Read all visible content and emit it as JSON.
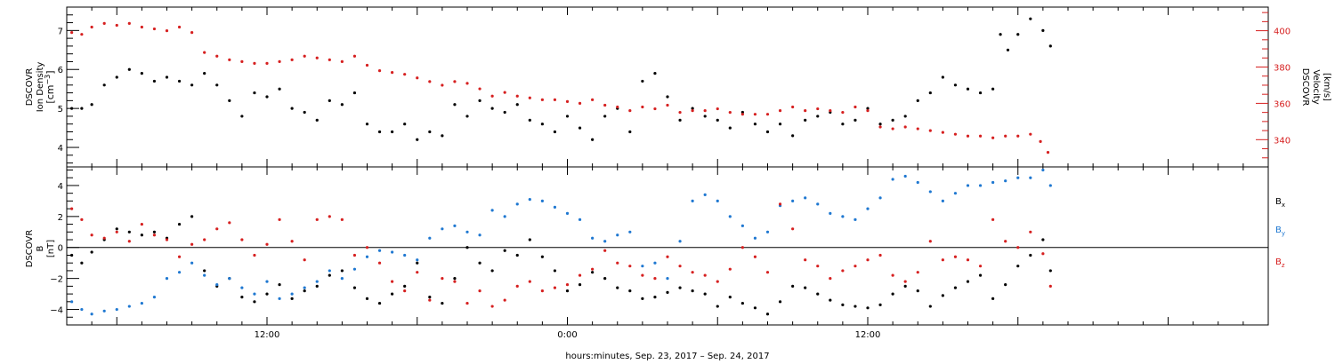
{
  "figure": {
    "xlabel": "hours:minutes, Sep. 23, 2017 – Sep. 24, 2017",
    "time_ticks": [
      "12:00",
      "0:00",
      "12:00"
    ]
  },
  "chart_data": [
    {
      "type": "scatter",
      "name": "density_velocity",
      "x_unit": "hours since Sep. 23, 2017 00:00",
      "xlim": [
        4,
        52
      ],
      "left_axis": {
        "label_lines": [
          "DSCOVR",
          "Ion Density"
        ],
        "unit_base": "[cm",
        "unit_sup": "−3",
        "unit_end": "]",
        "ylim": [
          3.5,
          7.6
        ],
        "ticks": [
          "4",
          "5",
          "6",
          "7"
        ],
        "tick_values": [
          4,
          5,
          6,
          7
        ]
      },
      "right_axis": {
        "label_lines": [
          "DSCOVR",
          "Velocity",
          "[km/s]"
        ],
        "ylim": [
          325,
          413
        ],
        "ticks": [
          "340",
          "360",
          "380",
          "400"
        ],
        "tick_values": [
          340,
          360,
          380,
          400
        ],
        "color": "#d62020"
      },
      "series": [
        {
          "name": "Ion Density",
          "color": "#000000",
          "x": [
            4.2,
            4.6,
            5.0,
            5.5,
            6.0,
            6.5,
            7.0,
            7.5,
            8.0,
            8.5,
            9.0,
            9.5,
            10.0,
            10.5,
            11.0,
            11.5,
            12.0,
            12.5,
            13.0,
            13.5,
            14.0,
            14.5,
            15.0,
            15.5,
            16.0,
            16.5,
            17.0,
            17.5,
            18.0,
            18.5,
            19.0,
            19.5,
            20.0,
            20.5,
            21.0,
            21.5,
            22.0,
            22.5,
            23.0,
            23.5,
            24.0,
            24.5,
            25.0,
            25.5,
            26.0,
            26.5,
            27.0,
            27.5,
            28.0,
            28.5,
            29.0,
            29.5,
            30.0,
            30.5,
            31.0,
            31.5,
            32.0,
            32.5,
            33.0,
            33.5,
            34.0,
            34.5,
            35.0,
            35.5,
            36.0,
            36.5,
            37.0,
            37.5,
            38.0,
            38.5,
            39.0,
            39.5,
            40.0,
            40.5,
            41.0,
            41.3,
            41.6,
            42.0,
            42.5,
            43.0,
            43.3
          ],
          "y": [
            5.0,
            5.0,
            5.1,
            5.6,
            5.8,
            6.0,
            5.9,
            5.7,
            5.8,
            5.7,
            5.6,
            5.9,
            5.6,
            5.2,
            4.8,
            5.4,
            5.3,
            5.5,
            5.0,
            4.9,
            4.7,
            5.2,
            5.1,
            5.4,
            4.6,
            4.4,
            4.4,
            4.6,
            4.2,
            4.4,
            4.3,
            5.1,
            4.8,
            5.2,
            5.0,
            4.9,
            5.1,
            4.7,
            4.6,
            4.4,
            4.8,
            4.5,
            4.2,
            4.8,
            5.0,
            4.4,
            5.7,
            5.9,
            5.3,
            4.7,
            5.0,
            4.8,
            4.7,
            4.5,
            4.9,
            4.6,
            4.4,
            4.6,
            4.3,
            4.7,
            4.8,
            4.9,
            4.6,
            4.7,
            5.0,
            4.6,
            4.7,
            4.8,
            5.2,
            5.4,
            5.8,
            5.6,
            5.5,
            5.4,
            5.5,
            6.9,
            6.5,
            6.9,
            7.3,
            7.0,
            6.6
          ]
        },
        {
          "name": "Velocity",
          "color": "#d62020",
          "axis": "right",
          "x": [
            4.2,
            4.6,
            5.0,
            5.5,
            6.0,
            6.5,
            7.0,
            7.5,
            8.0,
            8.5,
            9.0,
            9.5,
            10.0,
            10.5,
            11.0,
            11.5,
            12.0,
            12.5,
            13.0,
            13.5,
            14.0,
            14.5,
            15.0,
            15.5,
            16.0,
            16.5,
            17.0,
            17.5,
            18.0,
            18.5,
            19.0,
            19.5,
            20.0,
            20.5,
            21.0,
            21.5,
            22.0,
            22.5,
            23.0,
            23.5,
            24.0,
            24.5,
            25.0,
            25.5,
            26.0,
            26.5,
            27.0,
            27.5,
            28.0,
            28.5,
            29.0,
            29.5,
            30.0,
            30.5,
            31.0,
            31.5,
            32.0,
            32.5,
            33.0,
            33.5,
            34.0,
            34.5,
            35.0,
            35.5,
            36.0,
            36.5,
            37.0,
            37.5,
            38.0,
            38.5,
            39.0,
            39.5,
            40.0,
            40.5,
            41.0,
            41.5,
            42.0,
            42.5,
            42.9,
            43.2
          ],
          "y": [
            399,
            398,
            402,
            404,
            403,
            404,
            402,
            401,
            400,
            402,
            399,
            388,
            386,
            384,
            383,
            382,
            382,
            383,
            384,
            386,
            385,
            384,
            383,
            386,
            381,
            378,
            377,
            376,
            374,
            372,
            370,
            372,
            371,
            368,
            364,
            366,
            364,
            363,
            362,
            362,
            361,
            360,
            362,
            359,
            358,
            356,
            358,
            357,
            359,
            355,
            356,
            356,
            357,
            355,
            354,
            354,
            354,
            356,
            358,
            356,
            357,
            356,
            355,
            358,
            356,
            347,
            346,
            347,
            346,
            345,
            344,
            343,
            342,
            342,
            341,
            342,
            342,
            343,
            339,
            333
          ]
        }
      ]
    },
    {
      "type": "scatter",
      "name": "magnetic_field",
      "x_unit": "hours since Sep. 23, 2017 00:00",
      "xlim": [
        4,
        52
      ],
      "ylabel_lines": [
        "DSCOVR",
        "B",
        "[nT]"
      ],
      "ylim": [
        -5.0,
        5.2
      ],
      "ticks": [
        "−4",
        "−2",
        "0",
        "2",
        "4"
      ],
      "tick_values": [
        -4,
        -2,
        0,
        2,
        4
      ],
      "zero_line": true,
      "series": [
        {
          "name": "B",
          "subscript": "x",
          "color": "#000000",
          "x": [
            4.2,
            4.6,
            5.0,
            5.5,
            6.0,
            6.5,
            7.0,
            7.5,
            8.0,
            8.5,
            9.0,
            9.5,
            10.0,
            10.5,
            11.0,
            11.5,
            12.0,
            12.5,
            13.0,
            13.5,
            14.0,
            14.5,
            15.0,
            15.5,
            16.0,
            16.5,
            17.0,
            17.5,
            18.0,
            18.5,
            19.0,
            19.5,
            20.0,
            20.5,
            21.0,
            21.5,
            22.0,
            22.5,
            23.0,
            23.5,
            24.0,
            24.5,
            25.0,
            25.5,
            26.0,
            26.5,
            27.0,
            27.5,
            28.0,
            28.5,
            29.0,
            29.5,
            30.0,
            30.5,
            31.0,
            31.5,
            32.0,
            32.5,
            33.0,
            33.5,
            34.0,
            34.5,
            35.0,
            35.5,
            36.0,
            36.5,
            37.0,
            37.5,
            38.0,
            38.5,
            39.0,
            39.5,
            40.0,
            40.5,
            41.0,
            41.5,
            42.0,
            42.5,
            43.0,
            43.3
          ],
          "y": [
            -0.5,
            -1.0,
            -0.3,
            0.5,
            1.2,
            1.0,
            0.8,
            1.0,
            0.6,
            1.5,
            2.0,
            -1.5,
            -2.5,
            -2.0,
            -3.2,
            -3.5,
            -3.0,
            -2.4,
            -3.3,
            -2.8,
            -2.5,
            -1.8,
            -1.5,
            -2.6,
            -3.3,
            -3.6,
            -3.0,
            -2.5,
            -1.0,
            -3.2,
            -3.6,
            -2.0,
            0.0,
            -1.0,
            -1.5,
            -0.2,
            -0.5,
            0.5,
            -0.6,
            -1.5,
            -2.8,
            -2.4,
            -1.6,
            -2.0,
            -2.6,
            -2.8,
            -3.3,
            -3.2,
            -2.9,
            -2.6,
            -2.8,
            -3.0,
            -3.8,
            -3.2,
            -3.6,
            -3.9,
            -4.3,
            -3.5,
            -2.5,
            -2.6,
            -3.0,
            -3.4,
            -3.7,
            -3.8,
            -3.9,
            -3.7,
            -3.0,
            -2.5,
            -2.8,
            -3.8,
            -3.1,
            -2.6,
            -2.2,
            -1.8,
            -3.3,
            -2.4,
            -1.2,
            -0.5,
            0.5,
            -1.5
          ]
        },
        {
          "name": "B",
          "subscript": "y",
          "color": "#1f78d1",
          "x": [
            4.2,
            4.6,
            5.0,
            5.5,
            6.0,
            6.5,
            7.0,
            7.5,
            8.0,
            8.5,
            9.0,
            9.5,
            10.0,
            10.5,
            11.0,
            11.5,
            12.0,
            12.5,
            13.0,
            13.5,
            14.0,
            14.5,
            15.0,
            15.5,
            16.0,
            16.5,
            17.0,
            17.5,
            18.0,
            18.5,
            19.0,
            19.5,
            20.0,
            20.5,
            21.0,
            21.5,
            22.0,
            22.5,
            23.0,
            23.5,
            24.0,
            24.5,
            25.0,
            25.5,
            26.0,
            26.5,
            27.0,
            27.5,
            28.0,
            28.5,
            29.0,
            29.5,
            30.0,
            30.5,
            31.0,
            31.5,
            32.0,
            32.5,
            33.0,
            33.5,
            34.0,
            34.5,
            35.0,
            35.5,
            36.0,
            36.5,
            37.0,
            37.5,
            38.0,
            38.5,
            39.0,
            39.5,
            40.0,
            40.5,
            41.0,
            41.5,
            42.0,
            42.5,
            43.0,
            43.3
          ],
          "y": [
            -3.5,
            -4.0,
            -4.3,
            -4.1,
            -4.0,
            -3.8,
            -3.6,
            -3.2,
            -2.0,
            -1.6,
            -1.0,
            -1.8,
            -2.4,
            -2.0,
            -2.6,
            -3.0,
            -2.2,
            -3.3,
            -3.0,
            -2.6,
            -2.2,
            -1.5,
            -2.0,
            -1.4,
            -0.6,
            -0.2,
            -0.3,
            -0.5,
            -0.8,
            0.6,
            1.2,
            1.4,
            1.0,
            0.8,
            2.4,
            2.0,
            2.8,
            3.1,
            3.0,
            2.6,
            2.2,
            1.8,
            0.6,
            0.4,
            0.8,
            1.0,
            -1.2,
            -1.0,
            -2.0,
            0.4,
            3.0,
            3.4,
            3.0,
            2.0,
            1.4,
            0.6,
            1.0,
            2.7,
            3.0,
            3.2,
            2.8,
            2.2,
            2.0,
            1.8,
            2.5,
            3.2,
            4.4,
            4.6,
            4.2,
            3.6,
            3.0,
            3.5,
            4.0,
            4.0,
            4.2,
            4.3,
            4.5,
            4.5,
            5.0,
            4.0
          ]
        },
        {
          "name": "B",
          "subscript": "z",
          "color": "#d62020",
          "x": [
            4.2,
            4.6,
            5.0,
            5.5,
            6.0,
            6.5,
            7.0,
            7.5,
            8.0,
            8.5,
            9.0,
            9.5,
            10.0,
            10.5,
            11.0,
            11.5,
            12.0,
            12.5,
            13.0,
            13.5,
            14.0,
            14.5,
            15.0,
            15.5,
            16.0,
            16.5,
            17.0,
            17.5,
            18.0,
            18.5,
            19.0,
            19.5,
            20.0,
            20.5,
            21.0,
            21.5,
            22.0,
            22.5,
            23.0,
            23.5,
            24.0,
            24.5,
            25.0,
            25.5,
            26.0,
            26.5,
            27.0,
            27.5,
            28.0,
            28.5,
            29.0,
            29.5,
            30.0,
            30.5,
            31.0,
            31.5,
            32.0,
            32.5,
            33.0,
            33.5,
            34.0,
            34.5,
            35.0,
            35.5,
            36.0,
            36.5,
            37.0,
            37.5,
            38.0,
            38.5,
            39.0,
            39.5,
            40.0,
            40.5,
            41.0,
            41.5,
            42.0,
            42.5,
            43.0,
            43.3
          ],
          "y": [
            2.5,
            1.8,
            0.8,
            0.6,
            1.0,
            0.4,
            1.5,
            0.8,
            0.5,
            -0.6,
            0.2,
            0.5,
            1.2,
            1.6,
            0.5,
            -0.5,
            0.2,
            1.8,
            0.4,
            -0.8,
            1.8,
            2.0,
            1.8,
            -0.5,
            0.0,
            -1.0,
            -2.2,
            -2.8,
            -1.6,
            -3.4,
            -2.0,
            -2.2,
            -3.6,
            -2.8,
            -3.8,
            -3.4,
            -2.5,
            -2.2,
            -2.8,
            -2.6,
            -2.4,
            -1.8,
            -1.4,
            -0.2,
            -1.0,
            -1.2,
            -1.8,
            -2.0,
            -0.6,
            -1.2,
            -1.6,
            -1.8,
            -2.2,
            -1.4,
            0.0,
            -0.6,
            -1.6,
            2.8,
            1.2,
            -0.8,
            -1.2,
            -2.0,
            -1.5,
            -1.2,
            -0.8,
            -0.5,
            -1.8,
            -2.2,
            -1.6,
            0.4,
            -0.8,
            -0.6,
            -0.8,
            -1.2,
            1.8,
            0.4,
            0.0,
            1.0,
            -0.4,
            -2.5
          ]
        }
      ]
    }
  ]
}
